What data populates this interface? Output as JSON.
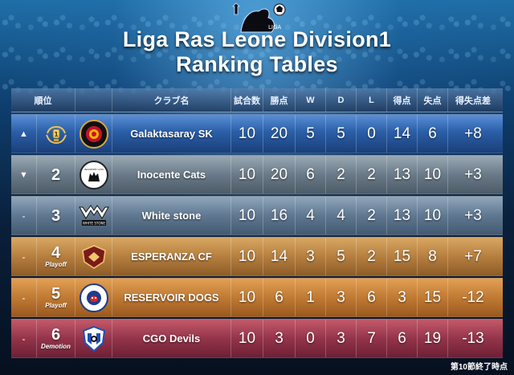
{
  "title_line1": "Liga Ras Leone Division1",
  "title_line2": "Ranking Tables",
  "emblem_text": "LIGA",
  "headers": {
    "rank": "順位",
    "club": "クラブ名",
    "played": "試合数",
    "points": "勝点",
    "w": "W",
    "d": "D",
    "l": "L",
    "gf": "得点",
    "ga": "失点",
    "gd": "得失点差"
  },
  "rows": [
    {
      "trend": "▲",
      "rank": "",
      "sub": "",
      "club": "Galaktasaray SK",
      "played": "10",
      "points": "20",
      "w": "5",
      "d": "5",
      "l": "0",
      "gf": "14",
      "ga": "6",
      "gd": "+8",
      "style": "r-blue",
      "logo": "galatasaray-crest-icon",
      "rank_badge": "gold-trophy-icon"
    },
    {
      "trend": "▼",
      "rank": "2",
      "sub": "",
      "club": "Inocente Cats",
      "played": "10",
      "points": "20",
      "w": "6",
      "d": "2",
      "l": "2",
      "gf": "13",
      "ga": "10",
      "gd": "+3",
      "style": "r-gray",
      "logo": "cat-crest-icon",
      "logo_text": "INOCENTE CATS"
    },
    {
      "trend": "-",
      "rank": "3",
      "sub": "",
      "club": "White stone",
      "played": "10",
      "points": "16",
      "w": "4",
      "d": "4",
      "l": "2",
      "gf": "13",
      "ga": "10",
      "gd": "+3",
      "style": "r-slate",
      "logo": "white-stone-logo-icon",
      "logo_text": "WHITE STONE"
    },
    {
      "trend": "-",
      "rank": "4",
      "sub": "Playoff",
      "club": "ESPERANZA CF",
      "played": "10",
      "points": "14",
      "w": "3",
      "d": "5",
      "l": "2",
      "gf": "15",
      "ga": "8",
      "gd": "+7",
      "style": "r-gold",
      "logo": "esperanza-crest-icon"
    },
    {
      "trend": "-",
      "rank": "5",
      "sub": "Playoff",
      "club": "RESERVOIR DOGS",
      "played": "10",
      "points": "6",
      "w": "1",
      "d": "3",
      "l": "6",
      "gf": "3",
      "ga": "15",
      "gd": "-12",
      "style": "r-orng",
      "logo": "dogs-crest-icon"
    },
    {
      "trend": "-",
      "rank": "6",
      "sub": "Demotion",
      "club": "CGO Devils",
      "played": "10",
      "points": "3",
      "w": "0",
      "d": "3",
      "l": "7",
      "gf": "6",
      "ga": "19",
      "gd": "-13",
      "style": "r-red",
      "logo": "devils-crest-icon"
    }
  ],
  "footer": "第10節終了時点"
}
